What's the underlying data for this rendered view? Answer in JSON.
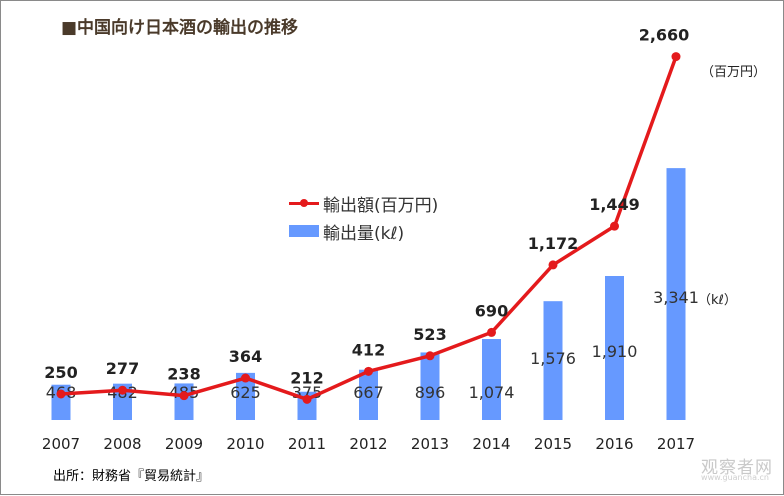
{
  "title": "■中国向け日本酒の輸出の推移",
  "source": "出所：財務省『貿易統計』",
  "watermark": "观察者网",
  "watermark_sub": "www.guancha.cn",
  "units": {
    "line": "（百万円）",
    "bar": "（kℓ）"
  },
  "colors": {
    "line": "#e41a1c",
    "bar": "#6699ff"
  },
  "chart_data": {
    "type": "bar+line",
    "title": "■中国向け日本酒の輸出の推移",
    "categories": [
      "2007",
      "2008",
      "2009",
      "2010",
      "2011",
      "2012",
      "2013",
      "2014",
      "2015",
      "2016",
      "2017"
    ],
    "series": [
      {
        "name": "輸出額(百万円)",
        "type": "line",
        "axis": "left",
        "values": [
          250,
          277,
          238,
          364,
          212,
          412,
          523,
          690,
          1172,
          1449,
          2660
        ],
        "labels": [
          "250",
          "277",
          "238",
          "364",
          "212",
          "412",
          "523",
          "690",
          "1,172",
          "1,449",
          "2,660"
        ]
      },
      {
        "name": "輸出量(kℓ)",
        "type": "bar",
        "axis": "right",
        "values": [
          468,
          482,
          485,
          625,
          375,
          667,
          896,
          1074,
          1576,
          1910,
          3341
        ],
        "labels": [
          "468",
          "482",
          "485",
          "625",
          "375",
          "667",
          "896",
          "1,074",
          "1,576",
          "1,910",
          "3,341"
        ]
      }
    ],
    "legend": [
      "輸出額(百万円)",
      "輸出量(kℓ)"
    ],
    "legend_position": "center",
    "ylim_left": [
      0,
      3000
    ],
    "ylim_right": [
      0,
      5000
    ],
    "grid": false
  }
}
